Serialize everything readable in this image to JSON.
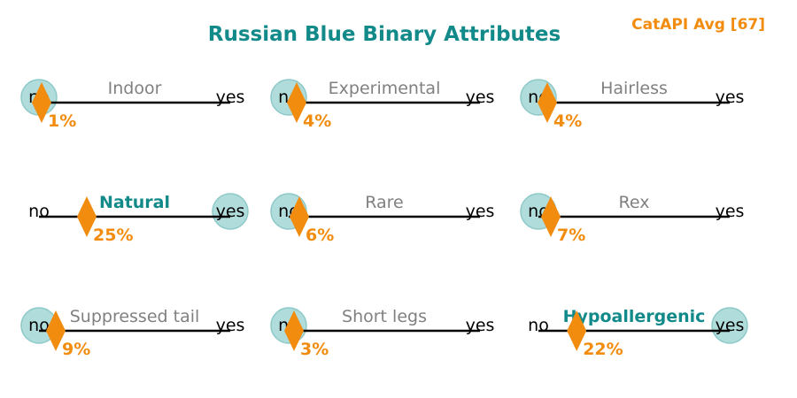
{
  "title": "Russian Blue Binary Attributes",
  "badge": "CatAPI Avg [67]",
  "colors": {
    "title": "#138a8a",
    "accent": "#f28c0f",
    "circle_fill": "#b0dcdc",
    "circle_stroke": "#8ec9c9",
    "line": "#000000",
    "label_muted": "#808080",
    "label_active": "#138a8a"
  },
  "chart_data": {
    "type": "binary-slider-grid",
    "scale_labels": {
      "no": "no",
      "yes": "yes"
    },
    "attributes": [
      {
        "label": "Indoor",
        "value": 0,
        "percent": 1,
        "percent_label": "1%"
      },
      {
        "label": "Experimental",
        "value": 0,
        "percent": 4,
        "percent_label": "4%"
      },
      {
        "label": "Hairless",
        "value": 0,
        "percent": 4,
        "percent_label": "4%"
      },
      {
        "label": "Natural",
        "value": 1,
        "percent": 25,
        "percent_label": "25%"
      },
      {
        "label": "Rare",
        "value": 0,
        "percent": 6,
        "percent_label": "6%"
      },
      {
        "label": "Rex",
        "value": 0,
        "percent": 7,
        "percent_label": "7%"
      },
      {
        "label": "Suppressed tail",
        "value": 0,
        "percent": 9,
        "percent_label": "9%"
      },
      {
        "label": "Short legs",
        "value": 0,
        "percent": 3,
        "percent_label": "3%"
      },
      {
        "label": "Hypoallergenic",
        "value": 1,
        "percent": 22,
        "percent_label": "22%"
      }
    ]
  }
}
